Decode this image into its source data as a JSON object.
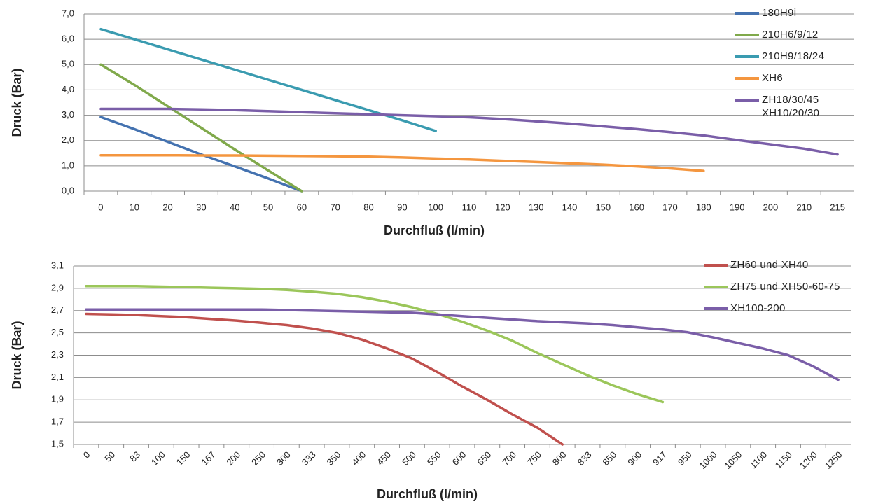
{
  "chart_data": [
    {
      "type": "line",
      "x_label": "Durchfluß (l/min)",
      "y_label": "Druck (Bar)",
      "categories": [
        "0",
        "10",
        "20",
        "30",
        "40",
        "50",
        "60",
        "70",
        "80",
        "90",
        "100",
        "110",
        "120",
        "130",
        "140",
        "150",
        "160",
        "170",
        "180",
        "190",
        "200",
        "210",
        "215"
      ],
      "ylim": [
        0,
        7
      ],
      "yticks": [
        {
          "value": 0,
          "label": "0,0"
        },
        {
          "value": 1,
          "label": "1,0"
        },
        {
          "value": 2,
          "label": "2,0"
        },
        {
          "value": 3,
          "label": "3,0"
        },
        {
          "value": 4,
          "label": "4,0"
        },
        {
          "value": 5,
          "label": "5,0"
        },
        {
          "value": 6,
          "label": "6,0"
        },
        {
          "value": 7,
          "label": "7,0"
        }
      ],
      "grid": true,
      "series": [
        {
          "name": "180H9i",
          "color": "#4472b0",
          "values": [
            2.93,
            2.45,
            1.95,
            1.45,
            0.98,
            0.5,
            0,
            null,
            null,
            null,
            null,
            null,
            null,
            null,
            null,
            null,
            null,
            null,
            null,
            null,
            null,
            null,
            null
          ]
        },
        {
          "name": "210H6/9/12",
          "color": "#80a94b",
          "values": [
            5.0,
            4.2,
            3.35,
            2.5,
            1.65,
            0.82,
            0,
            null,
            null,
            null,
            null,
            null,
            null,
            null,
            null,
            null,
            null,
            null,
            null,
            null,
            null,
            null,
            null
          ]
        },
        {
          "name": "210H9/18/24",
          "color": "#3a9bb0",
          "values": [
            6.4,
            6.0,
            5.6,
            5.2,
            4.8,
            4.4,
            4.0,
            3.6,
            3.2,
            2.8,
            2.38,
            null,
            null,
            null,
            null,
            null,
            null,
            null,
            null,
            null,
            null,
            null,
            null
          ]
        },
        {
          "name": "XH6",
          "color": "#f4963f",
          "values": [
            1.42,
            1.42,
            1.42,
            1.41,
            1.41,
            1.4,
            1.39,
            1.38,
            1.36,
            1.33,
            1.29,
            1.25,
            1.2,
            1.15,
            1.1,
            1.05,
            0.98,
            0.9,
            0.8,
            null,
            null,
            null,
            null
          ]
        },
        {
          "name": "ZH18/30/45 XH10/20/30",
          "color": "#7a5ea8",
          "values": [
            3.25,
            3.25,
            3.25,
            3.23,
            3.2,
            3.16,
            3.12,
            3.08,
            3.04,
            3.0,
            2.96,
            2.92,
            2.85,
            2.76,
            2.67,
            2.56,
            2.45,
            2.33,
            2.2,
            2.02,
            1.85,
            1.68,
            1.45
          ]
        }
      ]
    },
    {
      "type": "line",
      "x_label": "Durchfluß (l/min)",
      "y_label": "Druck (Bar)",
      "categories": [
        "0",
        "50",
        "83",
        "100",
        "150",
        "167",
        "200",
        "250",
        "300",
        "333",
        "350",
        "400",
        "450",
        "500",
        "550",
        "600",
        "650",
        "700",
        "750",
        "800",
        "833",
        "850",
        "900",
        "917",
        "950",
        "1000",
        "1050",
        "1100",
        "1150",
        "1200",
        "1250"
      ],
      "ylim": [
        1.5,
        3.1
      ],
      "yticks": [
        {
          "value": 1.5,
          "label": "1,5"
        },
        {
          "value": 1.7,
          "label": "1,7"
        },
        {
          "value": 1.9,
          "label": "1,9"
        },
        {
          "value": 2.1,
          "label": "2,1"
        },
        {
          "value": 2.3,
          "label": "2,3"
        },
        {
          "value": 2.5,
          "label": "2,5"
        },
        {
          "value": 2.7,
          "label": "2,7"
        },
        {
          "value": 2.9,
          "label": "2,9"
        },
        {
          "value": 3.1,
          "label": "3,1"
        }
      ],
      "grid": true,
      "series": [
        {
          "name": "ZH60 und XH40",
          "color": "#c0504d",
          "values": [
            2.67,
            2.665,
            2.66,
            2.65,
            2.64,
            2.625,
            2.61,
            2.59,
            2.57,
            2.54,
            2.5,
            2.44,
            2.36,
            2.27,
            2.15,
            2.02,
            1.9,
            1.77,
            1.65,
            1.5,
            null,
            null,
            null,
            null,
            null,
            null,
            null,
            null,
            null,
            null,
            null
          ]
        },
        {
          "name": "ZH75 und XH50-60-75",
          "color": "#9bc65a",
          "values": [
            2.92,
            2.92,
            2.92,
            2.915,
            2.91,
            2.905,
            2.9,
            2.895,
            2.885,
            2.87,
            2.85,
            2.82,
            2.78,
            2.73,
            2.67,
            2.6,
            2.52,
            2.43,
            2.32,
            2.22,
            2.12,
            2.03,
            1.95,
            1.88,
            null,
            null,
            null,
            null,
            null,
            null,
            null
          ]
        },
        {
          "name": "XH100-200",
          "color": "#7a5ea8",
          "values": [
            2.71,
            2.71,
            2.71,
            2.71,
            2.71,
            2.71,
            2.71,
            2.71,
            2.705,
            2.7,
            2.695,
            2.69,
            2.685,
            2.68,
            2.665,
            2.65,
            2.635,
            2.62,
            2.605,
            2.595,
            2.585,
            2.57,
            2.55,
            2.53,
            2.505,
            2.46,
            2.41,
            2.36,
            2.3,
            2.2,
            2.08
          ]
        }
      ]
    }
  ]
}
